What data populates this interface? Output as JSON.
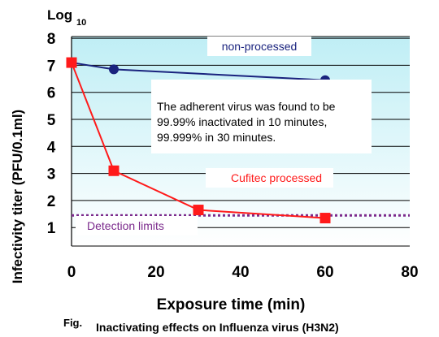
{
  "chart_data": {
    "type": "line",
    "x_ticks": [
      "0",
      "20",
      "40",
      "60",
      "80"
    ],
    "y_ticks": [
      "1",
      "2",
      "3",
      "4",
      "5",
      "6",
      "7",
      "8"
    ],
    "xlim": [
      0,
      80
    ],
    "ylim": [
      0.5,
      8
    ],
    "y_unit_label": "Log",
    "y_unit_sub": "10",
    "xlabel": "Exposure time (min)",
    "ylabel": "Infectivity titer (PFU/0.1ml)",
    "grid": "horizontal",
    "series": [
      {
        "name": "non-processed",
        "color": "#1a237e",
        "marker": "circle",
        "x": [
          0,
          10,
          60
        ],
        "y": [
          7.1,
          6.85,
          6.45
        ]
      },
      {
        "name": "Cufitec processed",
        "color": "#ff1a1a",
        "marker": "square",
        "x": [
          0,
          10,
          30,
          60
        ],
        "y": [
          7.1,
          3.1,
          1.65,
          1.35
        ]
      }
    ],
    "reference_line": {
      "label": "Detection limits",
      "y": 1.45,
      "color": "#7b2a8c",
      "style": "dotted"
    },
    "annotation": "The adherent virus was found to be 99.99% inactivated  in 10 minutes, 99.999% in 30 minutes.",
    "caption_prefix": "Fig.",
    "caption": "Inactivating effects on Influenza virus (H3N2)"
  }
}
